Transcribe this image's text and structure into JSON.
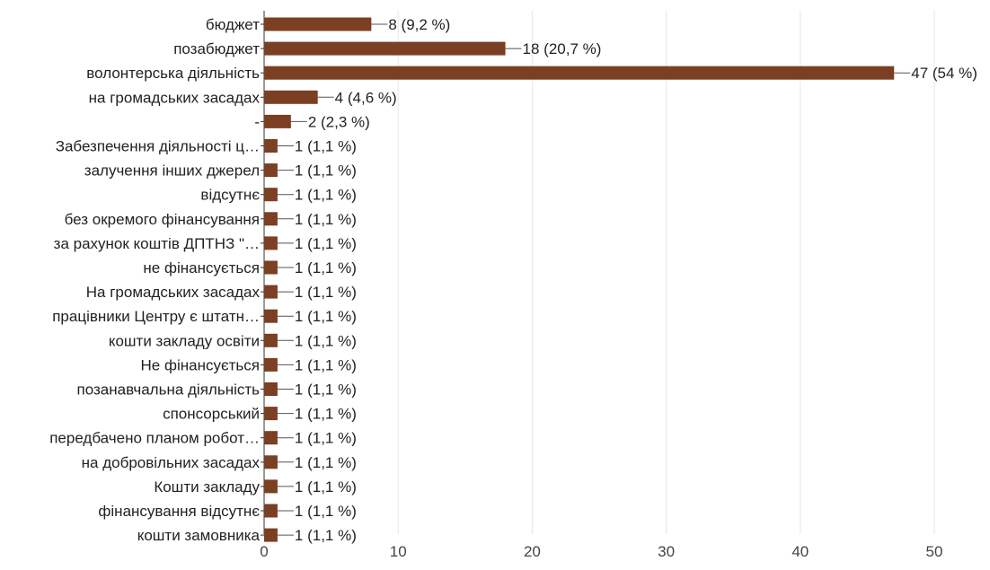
{
  "chart_data": {
    "type": "bar",
    "orientation": "horizontal",
    "title": "",
    "xlabel": "",
    "ylabel": "",
    "xlim": [
      0,
      50
    ],
    "x_ticks": [
      0,
      10,
      20,
      30,
      40,
      50
    ],
    "grid": true,
    "bar_color": "#7b3f23",
    "categories": [
      "бюджет",
      "позабюджет",
      "волонтерська діяльність",
      "на громадських засадах",
      "-",
      "Забезпечення діяльності ц…",
      "залучення інших джерел",
      "відсутнє",
      "без окремого фінансування",
      "за рахунок коштів ДПТНЗ \"…",
      "не фінансується",
      "На громадських засадах",
      "працівники Центру є штатн…",
      "кошти закладу освіти",
      "Не фінансується",
      "позанавчальна діяльність",
      "спонсорський",
      "передбачено планом робот…",
      "на добровільних засадах",
      "Кошти закладу",
      "фінансування відсутнє",
      "кошти замовника"
    ],
    "values": [
      8,
      18,
      47,
      4,
      2,
      1,
      1,
      1,
      1,
      1,
      1,
      1,
      1,
      1,
      1,
      1,
      1,
      1,
      1,
      1,
      1,
      1
    ],
    "data_labels": [
      "8 (9,2 %)",
      "18 (20,7 %)",
      "47 (54 %)",
      "4 (4,6 %)",
      "2 (2,3 %)",
      "1 (1,1 %)",
      "1 (1,1 %)",
      "1 (1,1 %)",
      "1 (1,1 %)",
      "1 (1,1 %)",
      "1 (1,1 %)",
      "1 (1,1 %)",
      "1 (1,1 %)",
      "1 (1,1 %)",
      "1 (1,1 %)",
      "1 (1,1 %)",
      "1 (1,1 %)",
      "1 (1,1 %)",
      "1 (1,1 %)",
      "1 (1,1 %)",
      "1 (1,1 %)",
      "1 (1,1 %)"
    ]
  }
}
